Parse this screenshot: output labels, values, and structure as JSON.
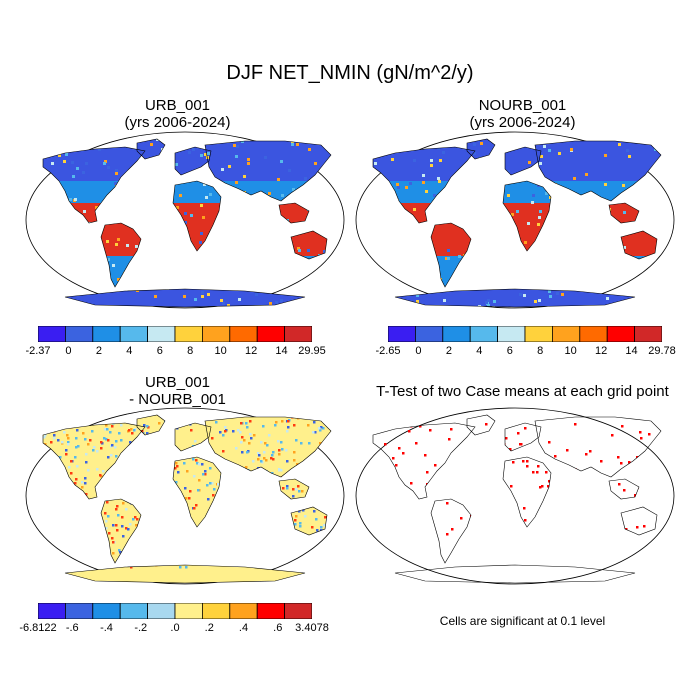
{
  "title": "DJF NET_NMIN (gN/m^2/y)",
  "panels": [
    {
      "title_line1": "URB_001",
      "title_line2": "(yrs 2006-2024)"
    },
    {
      "title_line1": "NOURB_001",
      "title_line2": "(yrs 2006-2024)"
    },
    {
      "title_line1": "URB_001",
      "title_line2": "- NOURB_001"
    },
    {
      "title_line1": "T-Test of two Case means at each grid point",
      "title_line2": ""
    }
  ],
  "colorbars": [
    {
      "colors": [
        "#3a1ef2",
        "#3b63e0",
        "#1f8fe6",
        "#56b9ec",
        "#c6e9f2",
        "#ffd23c",
        "#ffa21e",
        "#ff6a00",
        "#ff0000",
        "#d12828"
      ],
      "labels": [
        "-2.37",
        "0",
        "2",
        "4",
        "6",
        "8",
        "10",
        "12",
        "14",
        "29.95"
      ]
    },
    {
      "colors": [
        "#3a1ef2",
        "#3b63e0",
        "#1f8fe6",
        "#56b9ec",
        "#c6e9f2",
        "#ffd23c",
        "#ffa21e",
        "#ff6a00",
        "#ff0000",
        "#d12828"
      ],
      "labels": [
        "-2.65",
        "0",
        "2",
        "4",
        "6",
        "8",
        "10",
        "12",
        "14",
        "29.78"
      ]
    },
    {
      "colors": [
        "#3a1ef2",
        "#3b63e0",
        "#1f8fe6",
        "#56b9ec",
        "#a8d8ef",
        "#fff08c",
        "#ffd23c",
        "#ffa21e",
        "#ff0000",
        "#d12828"
      ],
      "labels": [
        "-6.8122",
        "-.6",
        "-.4",
        "-.2",
        ".0",
        ".2",
        ".4",
        ".6",
        "3.4078"
      ]
    }
  ],
  "significance_note": "Cells are significant at 0.1 level",
  "map_colors": {
    "high_lat": "#3b55e0",
    "mid": "#1f8fe6",
    "tropics": "#e03020",
    "diff_bg": "#fff08c",
    "diff_neg": "#56b9ec",
    "diff_pos": "#ff3a10",
    "sig": "#ff0000",
    "coast": "#000000"
  }
}
